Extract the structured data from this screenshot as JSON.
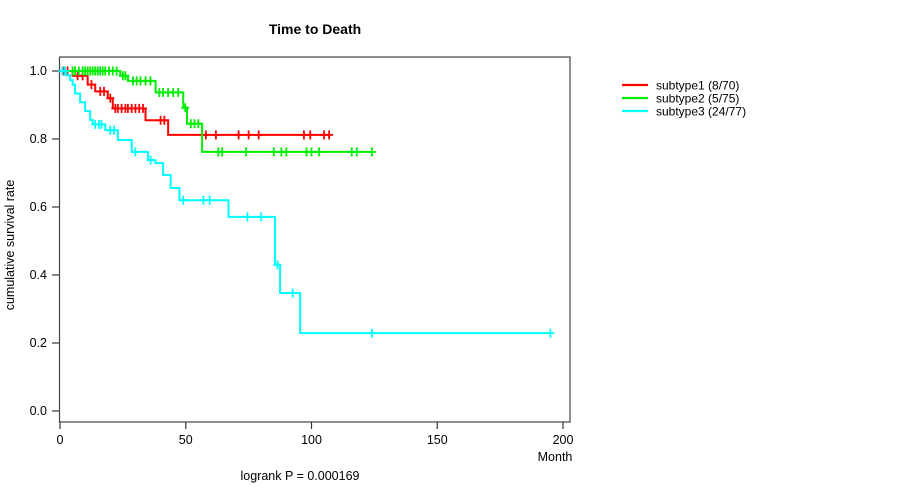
{
  "page": {
    "background": "#ffffff"
  },
  "chart_data": {
    "type": "line",
    "subtype": "kaplan-meier-step-curves",
    "title": "Time to Death",
    "xlabel": "Month",
    "ylabel": "cumulative survival rate",
    "footer": "logrank P = 0.000169",
    "xlim": [
      0,
      203
    ],
    "ylim": [
      0,
      1
    ],
    "xticks": [
      0,
      50,
      100,
      150,
      200
    ],
    "yticks": [
      "0.0",
      "0.2",
      "0.4",
      "0.6",
      "0.8",
      "1.0"
    ],
    "grid": false,
    "legend_position": "right-outside",
    "censor_marker": "plus",
    "series": [
      {
        "name": "subtype1 (8/70)",
        "color": "#ff0000",
        "start": [
          0,
          1.0
        ],
        "steps": [
          [
            5,
            0.986
          ],
          [
            11,
            0.96
          ],
          [
            14,
            0.94
          ],
          [
            19,
            0.92
          ],
          [
            21,
            0.89
          ],
          [
            34,
            0.855
          ],
          [
            43,
            0.812
          ]
        ],
        "end_month": 107,
        "censors": [
          [
            1.5,
            1
          ],
          [
            3,
            1
          ],
          [
            7,
            0.986
          ],
          [
            9,
            0.986
          ],
          [
            12.5,
            0.96
          ],
          [
            16,
            0.94
          ],
          [
            17.5,
            0.94
          ],
          [
            20,
            0.92
          ],
          [
            22,
            0.89
          ],
          [
            23,
            0.89
          ],
          [
            24.5,
            0.89
          ],
          [
            26,
            0.89
          ],
          [
            27,
            0.89
          ],
          [
            28.5,
            0.89
          ],
          [
            30,
            0.89
          ],
          [
            31.5,
            0.89
          ],
          [
            33,
            0.89
          ],
          [
            40,
            0.855
          ],
          [
            41.5,
            0.855
          ],
          [
            58,
            0.812
          ],
          [
            62,
            0.812
          ],
          [
            71,
            0.812
          ],
          [
            75,
            0.812
          ],
          [
            79,
            0.812
          ],
          [
            97,
            0.812
          ],
          [
            99.5,
            0.812
          ],
          [
            105,
            0.812
          ],
          [
            107,
            0.812
          ]
        ]
      },
      {
        "name": "subtype2 (5/75)",
        "color": "#00ee00",
        "start": [
          0,
          1.0
        ],
        "steps": [
          [
            24,
            0.986
          ],
          [
            27,
            0.971
          ],
          [
            38,
            0.937
          ],
          [
            49,
            0.892
          ],
          [
            50.5,
            0.845
          ],
          [
            56.5,
            0.762
          ]
        ],
        "end_month": 124,
        "censors": [
          [
            5,
            1
          ],
          [
            6,
            1
          ],
          [
            7.5,
            1
          ],
          [
            9,
            1
          ],
          [
            10,
            1
          ],
          [
            11,
            1
          ],
          [
            12,
            1
          ],
          [
            13,
            1
          ],
          [
            14,
            1
          ],
          [
            15,
            1
          ],
          [
            16,
            1
          ],
          [
            17,
            1
          ],
          [
            18,
            1
          ],
          [
            19.5,
            1
          ],
          [
            21,
            1
          ],
          [
            22.5,
            1
          ],
          [
            25,
            0.986
          ],
          [
            26,
            0.986
          ],
          [
            29,
            0.971
          ],
          [
            30.5,
            0.971
          ],
          [
            32,
            0.971
          ],
          [
            34,
            0.971
          ],
          [
            36,
            0.971
          ],
          [
            39.5,
            0.937
          ],
          [
            41,
            0.937
          ],
          [
            43,
            0.937
          ],
          [
            45,
            0.937
          ],
          [
            47,
            0.937
          ],
          [
            49.8,
            0.892
          ],
          [
            52,
            0.845
          ],
          [
            53.5,
            0.845
          ],
          [
            55,
            0.845
          ],
          [
            63,
            0.762
          ],
          [
            64.5,
            0.762
          ],
          [
            74,
            0.762
          ],
          [
            85,
            0.762
          ],
          [
            88,
            0.762
          ],
          [
            90,
            0.762
          ],
          [
            98,
            0.762
          ],
          [
            100,
            0.762
          ],
          [
            103,
            0.762
          ],
          [
            116,
            0.762
          ],
          [
            118,
            0.762
          ],
          [
            124,
            0.762
          ]
        ]
      },
      {
        "name": "subtype3 (24/77)",
        "color": "#00ffff",
        "start": [
          0,
          1.0
        ],
        "steps": [
          [
            2.5,
            0.987
          ],
          [
            4,
            0.973
          ],
          [
            5,
            0.96
          ],
          [
            6,
            0.934
          ],
          [
            8,
            0.908
          ],
          [
            10,
            0.882
          ],
          [
            12,
            0.856
          ],
          [
            13,
            0.843
          ],
          [
            18,
            0.826
          ],
          [
            23,
            0.797
          ],
          [
            28.5,
            0.762
          ],
          [
            35,
            0.738
          ],
          [
            38,
            0.729
          ],
          [
            41,
            0.694
          ],
          [
            44,
            0.656
          ],
          [
            47.5,
            0.62
          ],
          [
            67,
            0.571
          ],
          [
            85.5,
            0.43
          ],
          [
            87.5,
            0.347
          ],
          [
            95.5,
            0.229
          ]
        ],
        "end_month": 195,
        "censors": [
          [
            1,
            1
          ],
          [
            2,
            1
          ],
          [
            14,
            0.843
          ],
          [
            15.5,
            0.843
          ],
          [
            16.5,
            0.843
          ],
          [
            20,
            0.826
          ],
          [
            21.5,
            0.826
          ],
          [
            30,
            0.762
          ],
          [
            36,
            0.738
          ],
          [
            49,
            0.62
          ],
          [
            57,
            0.62
          ],
          [
            59.5,
            0.62
          ],
          [
            74.5,
            0.571
          ],
          [
            80,
            0.571
          ],
          [
            86.5,
            0.43
          ],
          [
            92.5,
            0.347
          ],
          [
            124,
            0.229
          ],
          [
            195,
            0.229
          ]
        ]
      }
    ]
  }
}
